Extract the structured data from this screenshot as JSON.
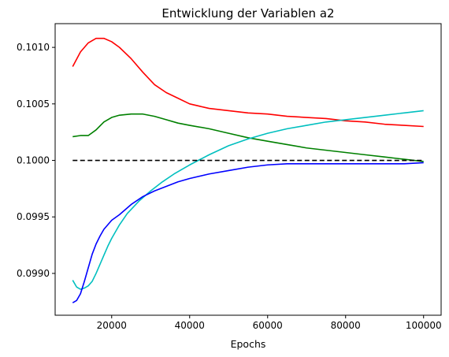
{
  "chart_data": {
    "type": "line",
    "title": "Entwicklung der Variablen a2",
    "xlabel": "Epochs",
    "ylabel": "",
    "xlim": [
      5500,
      104500
    ],
    "ylim": [
      0.09863,
      0.10121
    ],
    "x_ticks": [
      20000,
      40000,
      60000,
      80000,
      100000
    ],
    "x_tick_labels": [
      "20000",
      "40000",
      "60000",
      "80000",
      "100000"
    ],
    "y_ticks": [
      0.099,
      0.0995,
      0.1,
      0.1005,
      0.101
    ],
    "y_tick_labels": [
      "0.0990",
      "0.0995",
      "0.1000",
      "0.1005",
      "0.1010"
    ],
    "grid": false,
    "legend": "none",
    "series": [
      {
        "color": "#ff0000",
        "style": "solid",
        "x": [
          10000,
          12000,
          14000,
          16000,
          18000,
          20000,
          22000,
          25000,
          28000,
          31000,
          34000,
          37000,
          40000,
          45000,
          50000,
          55000,
          60000,
          65000,
          70000,
          75000,
          80000,
          85000,
          90000,
          95000,
          100000
        ],
        "y": [
          0.10083,
          0.10096,
          0.10104,
          0.10108,
          0.10108,
          0.10105,
          0.101,
          0.1009,
          0.10078,
          0.10067,
          0.1006,
          0.10055,
          0.1005,
          0.10046,
          0.10044,
          0.10042,
          0.10041,
          0.10039,
          0.10038,
          0.10037,
          0.10035,
          0.10034,
          0.10032,
          0.10031,
          0.1003
        ]
      },
      {
        "color": "#008000",
        "style": "solid",
        "x": [
          10000,
          12000,
          14000,
          16000,
          18000,
          20000,
          22000,
          25000,
          28000,
          31000,
          34000,
          37000,
          40000,
          45000,
          50000,
          55000,
          60000,
          65000,
          70000,
          75000,
          80000,
          85000,
          90000,
          95000,
          100000
        ],
        "y": [
          0.10021,
          0.10022,
          0.10022,
          0.10027,
          0.10034,
          0.10038,
          0.1004,
          0.10041,
          0.10041,
          0.10039,
          0.10036,
          0.10033,
          0.10031,
          0.10028,
          0.10024,
          0.1002,
          0.10017,
          0.10014,
          0.10011,
          0.10009,
          0.10007,
          0.10005,
          0.10003,
          0.10001,
          0.09999
        ]
      },
      {
        "color": "#00bfbf",
        "style": "solid",
        "x": [
          10000,
          11000,
          12000,
          13000,
          14000,
          15000,
          16000,
          17000,
          18000,
          19000,
          20000,
          22000,
          24000,
          27000,
          30000,
          33000,
          36000,
          40000,
          45000,
          50000,
          55000,
          60000,
          65000,
          70000,
          75000,
          80000,
          85000,
          90000,
          95000,
          100000
        ],
        "y": [
          0.09894,
          0.09888,
          0.09886,
          0.09887,
          0.09889,
          0.09893,
          0.099,
          0.09908,
          0.09916,
          0.09924,
          0.09931,
          0.09943,
          0.09953,
          0.09964,
          0.09973,
          0.09981,
          0.09988,
          0.09996,
          0.10005,
          0.10013,
          0.10019,
          0.10024,
          0.10028,
          0.10031,
          0.10034,
          0.10036,
          0.10038,
          0.1004,
          0.10042,
          0.10044
        ]
      },
      {
        "color": "#0000ff",
        "style": "solid",
        "x": [
          10000,
          11000,
          12000,
          13000,
          14000,
          15000,
          16000,
          17000,
          18000,
          20000,
          22000,
          25000,
          28000,
          31000,
          34000,
          37000,
          40000,
          45000,
          50000,
          55000,
          60000,
          65000,
          70000,
          75000,
          80000,
          85000,
          90000,
          95000,
          100000
        ],
        "y": [
          0.09874,
          0.09876,
          0.09882,
          0.09893,
          0.09905,
          0.09917,
          0.09926,
          0.09933,
          0.09939,
          0.09947,
          0.09952,
          0.09961,
          0.09968,
          0.09973,
          0.09977,
          0.09981,
          0.09984,
          0.09988,
          0.09991,
          0.09994,
          0.09996,
          0.09997,
          0.09997,
          0.09997,
          0.09997,
          0.09997,
          0.09997,
          0.09997,
          0.09998
        ]
      },
      {
        "color": "#000000",
        "style": "dashed",
        "x": [
          10000,
          100000
        ],
        "y": [
          0.1,
          0.1
        ]
      }
    ]
  }
}
